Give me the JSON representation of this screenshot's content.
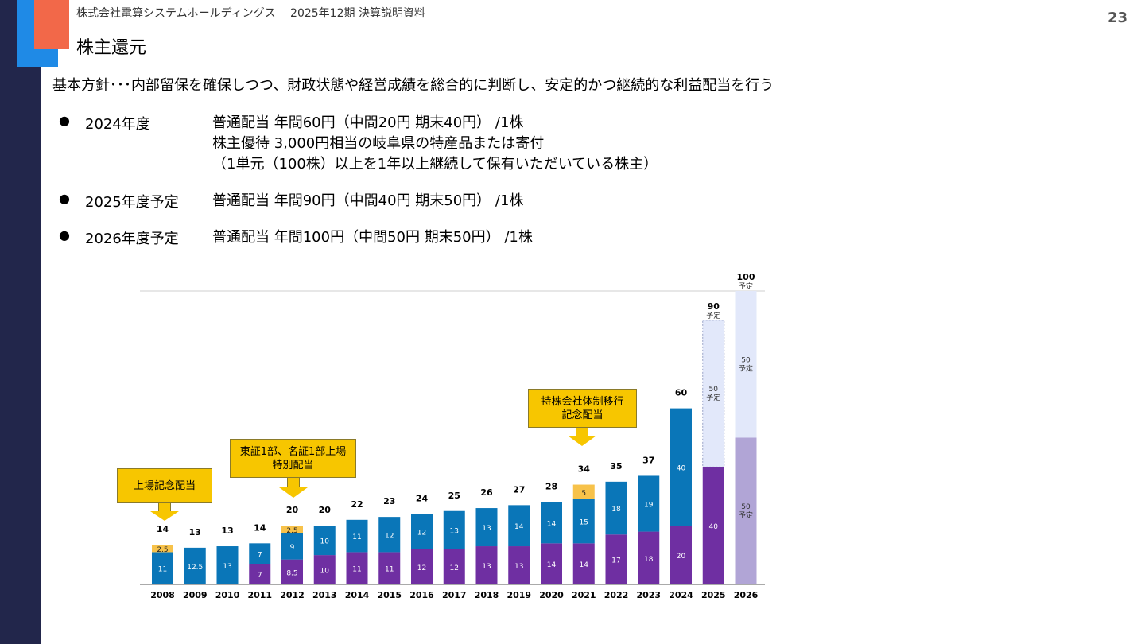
{
  "header": {
    "company": "株式会社電算システムホールディングス　 2025年12期 決算説明資料",
    "page_number": "23"
  },
  "title": "株主還元",
  "policy": "基本方針･･･内部留保を確保しつつ、財政状態や経営成績を総合的に判断し、安定的かつ継続的な利益配当を行う",
  "bullets": [
    {
      "year": "2024年度",
      "lines": [
        "普通配当 年間60円（中間20円 期末40円） /1株",
        "株主優待 3,000円相当の岐阜県の特産品または寄付",
        "（1単元（100株）以上を1年以上継続して保有いただいている株主）"
      ]
    },
    {
      "year": "2025年度予定",
      "lines": [
        "普通配当 年間90円（中間40円 期末50円） /1株"
      ]
    },
    {
      "year": "2026年度予定",
      "lines": [
        "普通配当 年間100円（中間50円 期末50円） /1株"
      ]
    }
  ],
  "callouts": [
    {
      "text": "上場記念配当"
    },
    {
      "text": "東証1部、名証1部上場\n特別配当"
    },
    {
      "text": "持株会社体制移行\n記念配当"
    }
  ],
  "colors": {
    "interim": "#6f2fa2",
    "year_end": "#0a76b8",
    "special": "#f7c24a",
    "planned_light": "#e2e8fa",
    "planned_purple": "#b1a5d6"
  },
  "chart_data": {
    "type": "bar",
    "categories": [
      "2008",
      "2009",
      "2010",
      "2011",
      "2012",
      "2013",
      "2014",
      "2015",
      "2016",
      "2017",
      "2018",
      "2019",
      "2020",
      "2021",
      "2022",
      "2023",
      "2024",
      "2025",
      "2026"
    ],
    "series": [
      {
        "values": [
          null,
          null,
          null,
          7,
          8.5,
          10,
          11,
          11,
          12,
          12,
          13,
          13,
          14,
          14,
          17,
          18,
          20,
          40,
          50
        ]
      },
      {
        "values": [
          11,
          12.5,
          13,
          7,
          9,
          10,
          11,
          12,
          12,
          13,
          13,
          14,
          14,
          15,
          18,
          19,
          40,
          50,
          50
        ]
      },
      {
        "values": [
          2.5,
          null,
          null,
          null,
          2.5,
          null,
          null,
          null,
          null,
          null,
          null,
          null,
          null,
          5,
          null,
          null,
          null,
          null,
          null
        ]
      }
    ],
    "totals": [
      "14",
      "13",
      "13",
      "14",
      "20",
      "20",
      "22",
      "23",
      "24",
      "25",
      "26",
      "27",
      "28",
      "34",
      "35",
      "37",
      "60",
      "90",
      "100"
    ],
    "planned_label": "予定",
    "ylim": [
      0,
      100
    ]
  }
}
